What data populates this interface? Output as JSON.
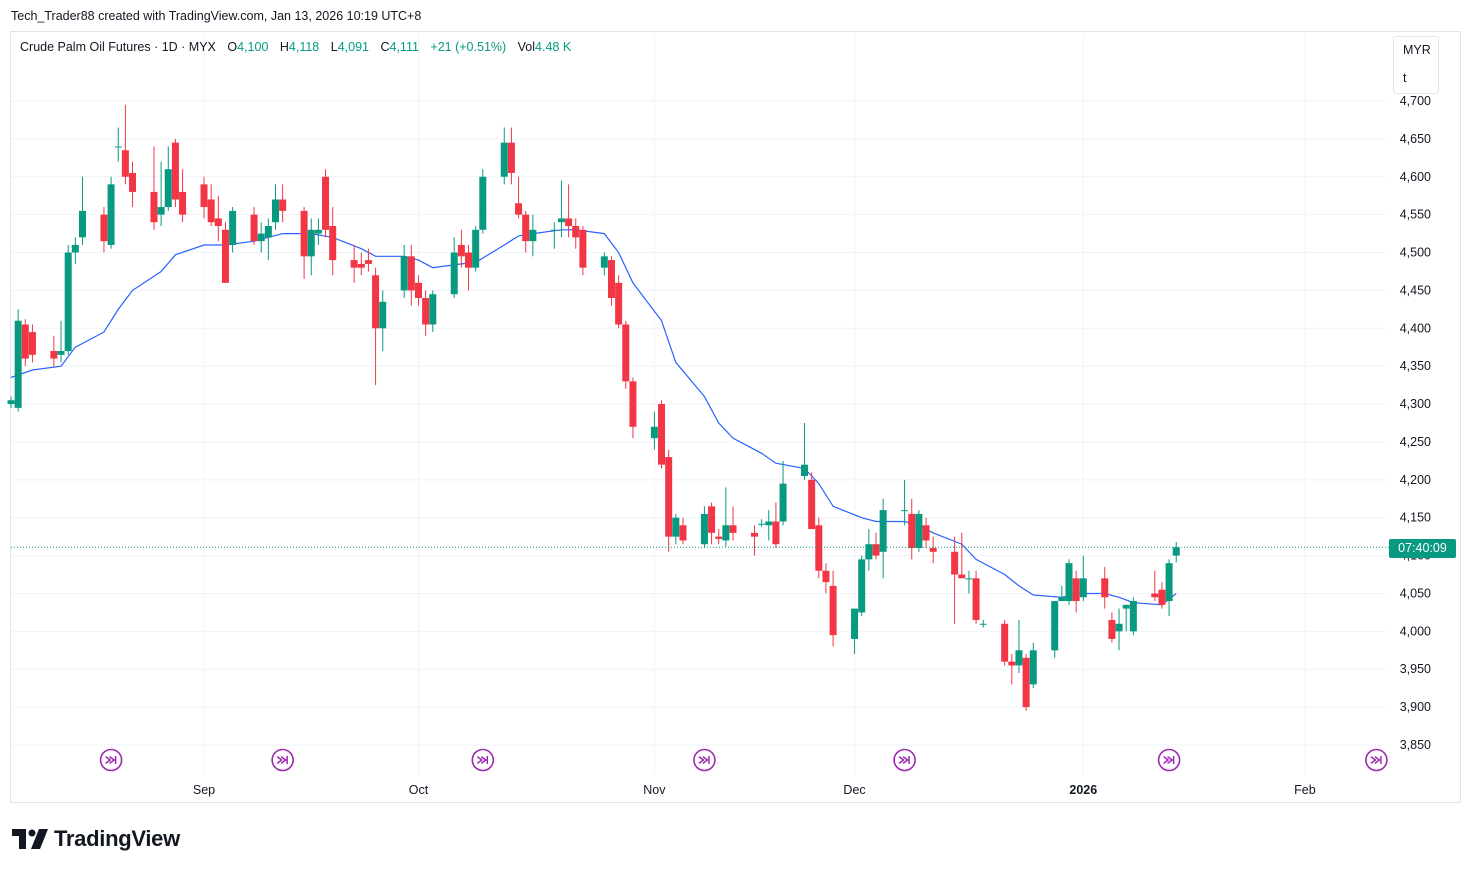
{
  "header": {
    "credit": "Tech_Trader88 created with TradingView.com, Jan 13, 2026 10:19 UTC+8"
  },
  "legend": {
    "symbol": "Crude Palm Oil Futures · 1D · MYX",
    "open_label": "O",
    "open": "4,100",
    "high_label": "H",
    "high": "4,118",
    "low_label": "L",
    "low": "4,091",
    "close_label": "C",
    "close": "4,111",
    "change": "+21 (+0.51%)",
    "vol_label": "Vol",
    "vol": "4.48 K"
  },
  "currency": {
    "code": "MYR",
    "unit": "t"
  },
  "countdown": "07:40:09",
  "logo": {
    "text": "TradingView"
  },
  "colors": {
    "up": "#089981",
    "down": "#f23645",
    "ma": "#2962ff",
    "event": "#9c27b0",
    "grid": "#f0f3fa",
    "axis_text": "#131722"
  },
  "chart_data": {
    "type": "candlestick",
    "y_ticks": [
      "4,700",
      "4,650",
      "4,600",
      "4,550",
      "4,500",
      "4,450",
      "4,400",
      "4,350",
      "4,300",
      "4,250",
      "4,200",
      "4,150",
      "4,100",
      "4,050",
      "4,000",
      "3,950",
      "3,900",
      "3,850"
    ],
    "y_range": [
      3830,
      4710
    ],
    "x_labels": [
      {
        "label": "Sep",
        "date": "2025-09-01"
      },
      {
        "label": "Oct",
        "date": "2025-10-01"
      },
      {
        "label": "Nov",
        "date": "2025-11-03"
      },
      {
        "label": "Dec",
        "date": "2025-12-01"
      },
      {
        "label": "2026",
        "date": "2026-01-02"
      },
      {
        "label": "Feb",
        "date": "2026-02-02"
      }
    ],
    "x_range": [
      "2025-08-05",
      "2026-02-16"
    ],
    "current_price": 4111,
    "event_dates": [
      "2025-08-19",
      "2025-09-12",
      "2025-10-10",
      "2025-11-10",
      "2025-12-08",
      "2026-01-14",
      "2026-02-12"
    ],
    "candles": [
      {
        "d": "2025-08-05",
        "o": 4300,
        "h": 4310,
        "l": 4295,
        "c": 4305
      },
      {
        "d": "2025-08-06",
        "o": 4295,
        "h": 4425,
        "l": 4290,
        "c": 4410
      },
      {
        "d": "2025-08-07",
        "o": 4405,
        "h": 4412,
        "l": 4350,
        "c": 4360
      },
      {
        "d": "2025-08-08",
        "o": 4395,
        "h": 4405,
        "l": 4355,
        "c": 4365
      },
      {
        "d": "2025-08-11",
        "o": 4370,
        "h": 4390,
        "l": 4350,
        "c": 4360
      },
      {
        "d": "2025-08-12",
        "o": 4365,
        "h": 4410,
        "l": 4355,
        "c": 4370
      },
      {
        "d": "2025-08-13",
        "o": 4370,
        "h": 4510,
        "l": 4365,
        "c": 4500
      },
      {
        "d": "2025-08-14",
        "o": 4500,
        "h": 4520,
        "l": 4485,
        "c": 4510
      },
      {
        "d": "2025-08-15",
        "o": 4520,
        "h": 4600,
        "l": 4510,
        "c": 4555
      },
      {
        "d": "2025-08-18",
        "o": 4550,
        "h": 4560,
        "l": 4500,
        "c": 4515
      },
      {
        "d": "2025-08-19",
        "o": 4510,
        "h": 4600,
        "l": 4505,
        "c": 4590
      },
      {
        "d": "2025-08-20",
        "o": 4640,
        "h": 4665,
        "l": 4620,
        "c": 4640
      },
      {
        "d": "2025-08-21",
        "o": 4635,
        "h": 4695,
        "l": 4590,
        "c": 4600
      },
      {
        "d": "2025-08-22",
        "o": 4605,
        "h": 4620,
        "l": 4560,
        "c": 4580
      },
      {
        "d": "2025-08-25",
        "o": 4580,
        "h": 4640,
        "l": 4530,
        "c": 4540
      },
      {
        "d": "2025-08-26",
        "o": 4550,
        "h": 4620,
        "l": 4535,
        "c": 4560
      },
      {
        "d": "2025-08-27",
        "o": 4560,
        "h": 4640,
        "l": 4555,
        "c": 4610
      },
      {
        "d": "2025-08-28",
        "o": 4645,
        "h": 4650,
        "l": 4560,
        "c": 4570
      },
      {
        "d": "2025-08-29",
        "o": 4580,
        "h": 4610,
        "l": 4540,
        "c": 4550
      },
      {
        "d": "2025-09-01",
        "o": 4590,
        "h": 4600,
        "l": 4545,
        "c": 4560
      },
      {
        "d": "2025-09-02",
        "o": 4570,
        "h": 4590,
        "l": 4535,
        "c": 4540
      },
      {
        "d": "2025-09-03",
        "o": 4545,
        "h": 4575,
        "l": 4515,
        "c": 4535
      },
      {
        "d": "2025-09-04",
        "o": 4530,
        "h": 4540,
        "l": 4460,
        "c": 4460
      },
      {
        "d": "2025-09-05",
        "o": 4510,
        "h": 4560,
        "l": 4500,
        "c": 4555
      },
      {
        "d": "2025-09-08",
        "o": 4550,
        "h": 4560,
        "l": 4510,
        "c": 4515
      },
      {
        "d": "2025-09-09",
        "o": 4515,
        "h": 4540,
        "l": 4500,
        "c": 4525
      },
      {
        "d": "2025-09-10",
        "o": 4520,
        "h": 4545,
        "l": 4490,
        "c": 4535
      },
      {
        "d": "2025-09-11",
        "o": 4540,
        "h": 4590,
        "l": 4530,
        "c": 4570
      },
      {
        "d": "2025-09-12",
        "o": 4570,
        "h": 4590,
        "l": 4540,
        "c": 4555
      },
      {
        "d": "2025-09-15",
        "o": 4555,
        "h": 4560,
        "l": 4465,
        "c": 4495
      },
      {
        "d": "2025-09-16",
        "o": 4495,
        "h": 4545,
        "l": 4470,
        "c": 4530
      },
      {
        "d": "2025-09-17",
        "o": 4525,
        "h": 4545,
        "l": 4510,
        "c": 4530
      },
      {
        "d": "2025-09-18",
        "o": 4600,
        "h": 4610,
        "l": 4520,
        "c": 4530
      },
      {
        "d": "2025-09-19",
        "o": 4535,
        "h": 4560,
        "l": 4470,
        "c": 4490
      },
      {
        "d": "2025-09-22",
        "o": 4490,
        "h": 4510,
        "l": 4460,
        "c": 4480
      },
      {
        "d": "2025-09-23",
        "o": 4485,
        "h": 4500,
        "l": 4470,
        "c": 4480
      },
      {
        "d": "2025-09-24",
        "o": 4490,
        "h": 4505,
        "l": 4475,
        "c": 4485
      },
      {
        "d": "2025-09-25",
        "o": 4470,
        "h": 4480,
        "l": 4325,
        "c": 4400
      },
      {
        "d": "2025-09-26",
        "o": 4400,
        "h": 4450,
        "l": 4370,
        "c": 4435
      },
      {
        "d": "2025-09-29",
        "o": 4450,
        "h": 4510,
        "l": 4440,
        "c": 4495
      },
      {
        "d": "2025-09-30",
        "o": 4495,
        "h": 4510,
        "l": 4430,
        "c": 4450
      },
      {
        "d": "2025-10-01",
        "o": 4460,
        "h": 4470,
        "l": 4430,
        "c": 4440
      },
      {
        "d": "2025-10-02",
        "o": 4440,
        "h": 4450,
        "l": 4390,
        "c": 4405
      },
      {
        "d": "2025-10-03",
        "o": 4405,
        "h": 4450,
        "l": 4395,
        "c": 4445
      },
      {
        "d": "2025-10-06",
        "o": 4445,
        "h": 4520,
        "l": 4440,
        "c": 4500
      },
      {
        "d": "2025-10-07",
        "o": 4510,
        "h": 4530,
        "l": 4480,
        "c": 4495
      },
      {
        "d": "2025-10-08",
        "o": 4500,
        "h": 4510,
        "l": 4450,
        "c": 4480
      },
      {
        "d": "2025-10-09",
        "o": 4480,
        "h": 4535,
        "l": 4475,
        "c": 4530
      },
      {
        "d": "2025-10-10",
        "o": 4530,
        "h": 4610,
        "l": 4525,
        "c": 4600
      },
      {
        "d": "2025-10-13",
        "o": 4600,
        "h": 4665,
        "l": 4590,
        "c": 4645
      },
      {
        "d": "2025-10-14",
        "o": 4645,
        "h": 4665,
        "l": 4590,
        "c": 4605
      },
      {
        "d": "2025-10-15",
        "o": 4565,
        "h": 4600,
        "l": 4545,
        "c": 4550
      },
      {
        "d": "2025-10-16",
        "o": 4550,
        "h": 4555,
        "l": 4500,
        "c": 4515
      },
      {
        "d": "2025-10-17",
        "o": 4515,
        "h": 4550,
        "l": 4495,
        "c": 4530
      },
      {
        "d": "2025-10-20",
        "o": 4530,
        "h": 4540,
        "l": 4505,
        "c": 4530
      },
      {
        "d": "2025-10-21",
        "o": 4540,
        "h": 4595,
        "l": 4520,
        "c": 4545
      },
      {
        "d": "2025-10-22",
        "o": 4545,
        "h": 4590,
        "l": 4520,
        "c": 4535
      },
      {
        "d": "2025-10-23",
        "o": 4535,
        "h": 4545,
        "l": 4505,
        "c": 4520
      },
      {
        "d": "2025-10-24",
        "o": 4530,
        "h": 4535,
        "l": 4470,
        "c": 4480
      },
      {
        "d": "2025-10-27",
        "o": 4480,
        "h": 4500,
        "l": 4470,
        "c": 4495
      },
      {
        "d": "2025-10-28",
        "o": 4490,
        "h": 4495,
        "l": 4430,
        "c": 4440
      },
      {
        "d": "2025-10-29",
        "o": 4460,
        "h": 4470,
        "l": 4400,
        "c": 4405
      },
      {
        "d": "2025-10-30",
        "o": 4405,
        "h": 4410,
        "l": 4320,
        "c": 4330
      },
      {
        "d": "2025-10-31",
        "o": 4330,
        "h": 4335,
        "l": 4255,
        "c": 4270
      },
      {
        "d": "2025-11-03",
        "o": 4255,
        "h": 4290,
        "l": 4240,
        "c": 4270
      },
      {
        "d": "2025-11-04",
        "o": 4300,
        "h": 4305,
        "l": 4215,
        "c": 4220
      },
      {
        "d": "2025-11-05",
        "o": 4230,
        "h": 4240,
        "l": 4105,
        "c": 4125
      },
      {
        "d": "2025-11-06",
        "o": 4125,
        "h": 4155,
        "l": 4115,
        "c": 4150
      },
      {
        "d": "2025-11-07",
        "o": 4140,
        "h": 4150,
        "l": 4115,
        "c": 4120
      },
      {
        "d": "2025-11-10",
        "o": 4115,
        "h": 4165,
        "l": 4110,
        "c": 4155
      },
      {
        "d": "2025-11-11",
        "o": 4165,
        "h": 4170,
        "l": 4115,
        "c": 4130
      },
      {
        "d": "2025-11-12",
        "o": 4125,
        "h": 4135,
        "l": 4115,
        "c": 4122
      },
      {
        "d": "2025-11-13",
        "o": 4120,
        "h": 4190,
        "l": 4112,
        "c": 4140
      },
      {
        "d": "2025-11-14",
        "o": 4140,
        "h": 4165,
        "l": 4120,
        "c": 4130
      },
      {
        "d": "2025-11-17",
        "o": 4130,
        "h": 4140,
        "l": 4100,
        "c": 4125
      },
      {
        "d": "2025-11-18",
        "o": 4142,
        "h": 4148,
        "l": 4138,
        "c": 4142
      },
      {
        "d": "2025-11-19",
        "o": 4140,
        "h": 4160,
        "l": 4120,
        "c": 4145
      },
      {
        "d": "2025-11-20",
        "o": 4145,
        "h": 4170,
        "l": 4110,
        "c": 4115
      },
      {
        "d": "2025-11-21",
        "o": 4145,
        "h": 4225,
        "l": 4140,
        "c": 4195
      },
      {
        "d": "2025-11-24",
        "o": 4205,
        "h": 4275,
        "l": 4200,
        "c": 4220
      },
      {
        "d": "2025-11-25",
        "o": 4200,
        "h": 4210,
        "l": 4135,
        "c": 4135
      },
      {
        "d": "2025-11-26",
        "o": 4140,
        "h": 4150,
        "l": 4070,
        "c": 4080
      },
      {
        "d": "2025-11-27",
        "o": 4080,
        "h": 4090,
        "l": 4050,
        "c": 4065
      },
      {
        "d": "2025-11-28",
        "o": 4060,
        "h": 4080,
        "l": 3980,
        "c": 3995
      },
      {
        "d": "2025-12-01",
        "o": 3990,
        "h": 4030,
        "l": 3970,
        "c": 4030
      },
      {
        "d": "2025-12-02",
        "o": 4025,
        "h": 4100,
        "l": 4020,
        "c": 4095
      },
      {
        "d": "2025-12-03",
        "o": 4095,
        "h": 4135,
        "l": 4080,
        "c": 4115
      },
      {
        "d": "2025-12-04",
        "o": 4115,
        "h": 4130,
        "l": 4095,
        "c": 4100
      },
      {
        "d": "2025-12-05",
        "o": 4105,
        "h": 4175,
        "l": 4070,
        "c": 4160
      },
      {
        "d": "2025-12-08",
        "o": 4160,
        "h": 4200,
        "l": 4140,
        "c": 4160
      },
      {
        "d": "2025-12-09",
        "o": 4155,
        "h": 4175,
        "l": 4095,
        "c": 4110
      },
      {
        "d": "2025-12-10",
        "o": 4110,
        "h": 4160,
        "l": 4105,
        "c": 4155
      },
      {
        "d": "2025-12-11",
        "o": 4140,
        "h": 4150,
        "l": 4110,
        "c": 4120
      },
      {
        "d": "2025-12-12",
        "o": 4110,
        "h": 4125,
        "l": 4090,
        "c": 4105
      },
      {
        "d": "2025-12-15",
        "o": 4105,
        "h": 4125,
        "l": 4010,
        "c": 4075
      },
      {
        "d": "2025-12-16",
        "o": 4075,
        "h": 4130,
        "l": 4070,
        "c": 4070
      },
      {
        "d": "2025-12-17",
        "o": 4070,
        "h": 4080,
        "l": 4050,
        "c": 4070
      },
      {
        "d": "2025-12-18",
        "o": 4070,
        "h": 4080,
        "l": 4010,
        "c": 4015
      },
      {
        "d": "2025-12-19",
        "o": 4010,
        "h": 4015,
        "l": 4005,
        "c": 4010
      },
      {
        "d": "2025-12-22",
        "o": 4010,
        "h": 4015,
        "l": 3955,
        "c": 3960
      },
      {
        "d": "2025-12-23",
        "o": 3960,
        "h": 3970,
        "l": 3930,
        "c": 3955
      },
      {
        "d": "2025-12-24",
        "o": 3955,
        "h": 4015,
        "l": 3945,
        "c": 3975
      },
      {
        "d": "2025-12-25",
        "o": 3965,
        "h": 3970,
        "l": 3895,
        "c": 3900
      },
      {
        "d": "2025-12-26",
        "o": 3930,
        "h": 3985,
        "l": 3925,
        "c": 3975
      },
      {
        "d": "2025-12-29",
        "o": 3975,
        "h": 4040,
        "l": 3965,
        "c": 4040
      },
      {
        "d": "2025-12-30",
        "o": 4040,
        "h": 4060,
        "l": 4040,
        "c": 4045
      },
      {
        "d": "2025-12-31",
        "o": 4040,
        "h": 4095,
        "l": 4035,
        "c": 4090
      },
      {
        "d": "2026-01-01",
        "o": 4070,
        "h": 4080,
        "l": 4025,
        "c": 4040
      },
      {
        "d": "2026-01-02",
        "o": 4045,
        "h": 4100,
        "l": 4040,
        "c": 4070
      },
      {
        "d": "2026-01-05",
        "o": 4070,
        "h": 4085,
        "l": 4030,
        "c": 4045
      },
      {
        "d": "2026-01-06",
        "o": 4015,
        "h": 4025,
        "l": 3985,
        "c": 3990
      },
      {
        "d": "2026-01-07",
        "o": 4000,
        "h": 4030,
        "l": 3975,
        "c": 4010
      },
      {
        "d": "2026-01-08",
        "o": 4030,
        "h": 4035,
        "l": 4000,
        "c": 4035
      },
      {
        "d": "2026-01-09",
        "o": 4000,
        "h": 4045,
        "l": 3995,
        "c": 4040
      },
      {
        "d": "2026-01-12",
        "o": 4050,
        "h": 4080,
        "l": 4040,
        "c": 4045
      },
      {
        "d": "2026-01-13",
        "o": 4055,
        "h": 4065,
        "l": 4030,
        "c": 4035
      },
      {
        "d": "2026-01-14",
        "o": 4040,
        "h": 4095,
        "l": 4020,
        "c": 4090
      },
      {
        "d": "2026-01-15",
        "o": 4100,
        "h": 4118,
        "l": 4091,
        "c": 4111
      }
    ],
    "ma_series": [
      {
        "d": "2025-08-05",
        "v": 4335
      },
      {
        "d": "2025-08-08",
        "v": 4345
      },
      {
        "d": "2025-08-12",
        "v": 4350
      },
      {
        "d": "2025-08-14",
        "v": 4375
      },
      {
        "d": "2025-08-18",
        "v": 4395
      },
      {
        "d": "2025-08-20",
        "v": 4425
      },
      {
        "d": "2025-08-22",
        "v": 4450
      },
      {
        "d": "2025-08-26",
        "v": 4475
      },
      {
        "d": "2025-08-28",
        "v": 4497
      },
      {
        "d": "2025-09-01",
        "v": 4510
      },
      {
        "d": "2025-09-04",
        "v": 4510
      },
      {
        "d": "2025-09-08",
        "v": 4515
      },
      {
        "d": "2025-09-12",
        "v": 4525
      },
      {
        "d": "2025-09-16",
        "v": 4525
      },
      {
        "d": "2025-09-19",
        "v": 4520
      },
      {
        "d": "2025-09-23",
        "v": 4505
      },
      {
        "d": "2025-09-25",
        "v": 4495
      },
      {
        "d": "2025-09-29",
        "v": 4495
      },
      {
        "d": "2025-10-01",
        "v": 4490
      },
      {
        "d": "2025-10-03",
        "v": 4480
      },
      {
        "d": "2025-10-07",
        "v": 4485
      },
      {
        "d": "2025-10-09",
        "v": 4487
      },
      {
        "d": "2025-10-13",
        "v": 4510
      },
      {
        "d": "2025-10-15",
        "v": 4522
      },
      {
        "d": "2025-10-17",
        "v": 4525
      },
      {
        "d": "2025-10-21",
        "v": 4530
      },
      {
        "d": "2025-10-23",
        "v": 4530
      },
      {
        "d": "2025-10-27",
        "v": 4525
      },
      {
        "d": "2025-10-29",
        "v": 4500
      },
      {
        "d": "2025-10-31",
        "v": 4460
      },
      {
        "d": "2025-11-04",
        "v": 4410
      },
      {
        "d": "2025-11-06",
        "v": 4355
      },
      {
        "d": "2025-11-10",
        "v": 4310
      },
      {
        "d": "2025-11-12",
        "v": 4275
      },
      {
        "d": "2025-11-14",
        "v": 4255
      },
      {
        "d": "2025-11-18",
        "v": 4235
      },
      {
        "d": "2025-11-20",
        "v": 4222
      },
      {
        "d": "2025-11-24",
        "v": 4215
      },
      {
        "d": "2025-11-26",
        "v": 4195
      },
      {
        "d": "2025-11-28",
        "v": 4165
      },
      {
        "d": "2025-12-02",
        "v": 4150
      },
      {
        "d": "2025-12-04",
        "v": 4145
      },
      {
        "d": "2025-12-08",
        "v": 4145
      },
      {
        "d": "2025-12-10",
        "v": 4140
      },
      {
        "d": "2025-12-12",
        "v": 4130
      },
      {
        "d": "2025-12-16",
        "v": 4115
      },
      {
        "d": "2025-12-18",
        "v": 4095
      },
      {
        "d": "2025-12-22",
        "v": 4075
      },
      {
        "d": "2025-12-24",
        "v": 4060
      },
      {
        "d": "2025-12-26",
        "v": 4048
      },
      {
        "d": "2025-12-30",
        "v": 4045
      },
      {
        "d": "2026-01-01",
        "v": 4050
      },
      {
        "d": "2026-01-05",
        "v": 4050
      },
      {
        "d": "2026-01-07",
        "v": 4045
      },
      {
        "d": "2026-01-09",
        "v": 4038
      },
      {
        "d": "2026-01-13",
        "v": 4035
      },
      {
        "d": "2026-01-15",
        "v": 4050
      }
    ]
  }
}
